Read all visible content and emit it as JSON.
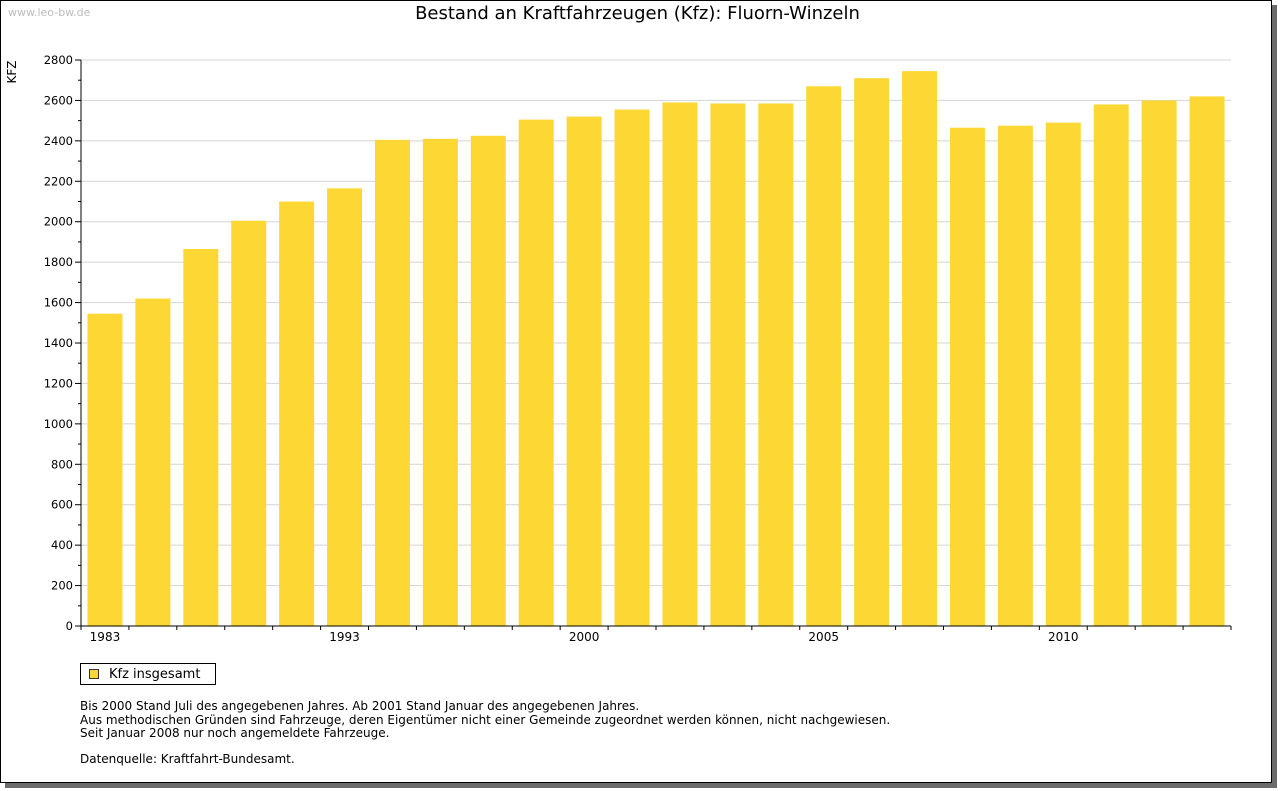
{
  "watermark": "www.leo-bw.de",
  "legend_label": "Kfz insgesamt",
  "notes": [
    "Bis 2000 Stand Juli des angegebenen Jahres. Ab 2001 Stand Januar des angegebenen Jahres.",
    "Aus methodischen Gründen sind Fahrzeuge, deren Eigentümer nicht einer Gemeinde zugeordnet werden können, nicht nachgewiesen.",
    "Seit Januar 2008 nur noch angemeldete Fahrzeuge."
  ],
  "source": "Datenquelle: Kraftfahrt-Bundesamt.",
  "colors": {
    "bar": "#fdd835",
    "grid": "#d4d4d4",
    "axis": "#000000"
  },
  "chart_data": {
    "type": "bar",
    "title": "Bestand an Kraftfahrzeugen (Kfz): Fluorn-Winzeln",
    "xlabel": "",
    "ylabel": "KFZ",
    "ylim": [
      0,
      2800
    ],
    "yticks": [
      0,
      200,
      400,
      600,
      800,
      1000,
      1200,
      1400,
      1600,
      1800,
      2000,
      2200,
      2400,
      2600,
      2800
    ],
    "grid": true,
    "legend_position": "bottom-left",
    "x_tick_labels": [
      {
        "index": 0,
        "label": "1983"
      },
      {
        "index": 5,
        "label": "1993"
      },
      {
        "index": 10,
        "label": "2000"
      },
      {
        "index": 15,
        "label": "2005"
      },
      {
        "index": 20,
        "label": "2010"
      }
    ],
    "series": [
      {
        "name": "Kfz insgesamt",
        "values": [
          1545,
          1620,
          1865,
          2005,
          2100,
          2165,
          2405,
          2410,
          2425,
          2505,
          2520,
          2555,
          2590,
          2585,
          2585,
          2670,
          2710,
          2745,
          2465,
          2475,
          2490,
          2580,
          2600,
          2620
        ]
      }
    ]
  }
}
